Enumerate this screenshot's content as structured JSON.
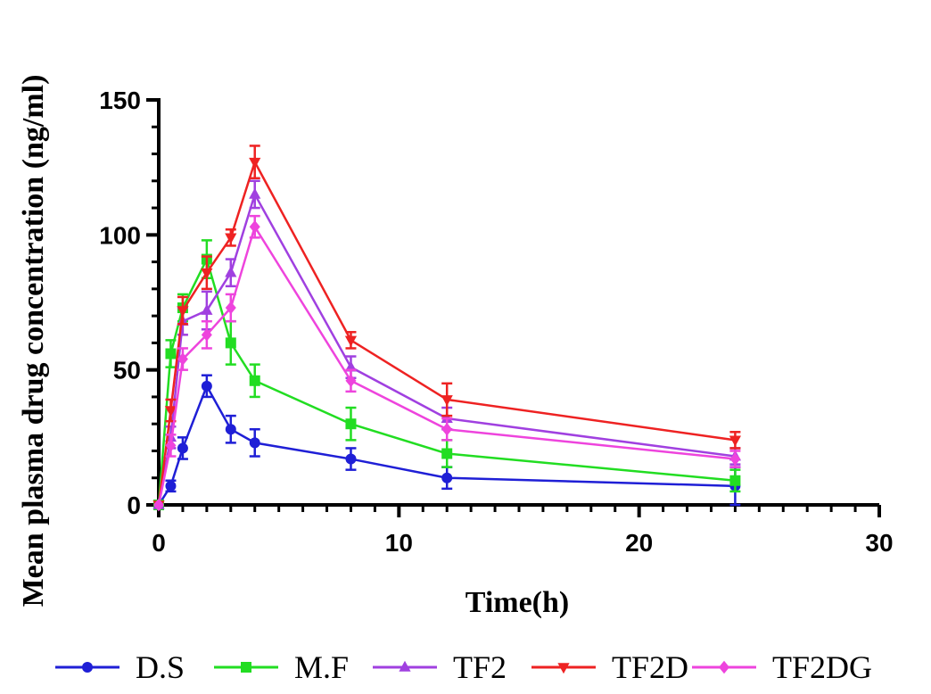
{
  "chart_data": {
    "type": "line",
    "title": "",
    "xlabel": "Time(h)",
    "ylabel": "Mean plasma drug concentration (ng/ml)",
    "xlim": [
      0,
      30
    ],
    "ylim": [
      0,
      150
    ],
    "xticks": [
      0,
      10,
      20,
      30
    ],
    "yticks": [
      0,
      50,
      100,
      150
    ],
    "grid": false,
    "legend_position": "bottom",
    "series": [
      {
        "name": "D.S",
        "color": "#1f1fd6",
        "marker": "circle",
        "x": [
          0,
          0.5,
          1,
          2,
          3,
          4,
          8,
          12,
          24
        ],
        "y": [
          0,
          7,
          21,
          44,
          28,
          23,
          17,
          10,
          7
        ],
        "err": [
          0,
          2,
          4,
          4,
          5,
          5,
          4,
          4,
          7
        ]
      },
      {
        "name": "M.F",
        "color": "#22dd22",
        "marker": "square",
        "x": [
          0,
          0.5,
          1,
          2,
          3,
          4,
          8,
          12,
          24
        ],
        "y": [
          0,
          56,
          73,
          91,
          60,
          46,
          30,
          19,
          9
        ],
        "err": [
          0,
          5,
          5,
          7,
          8,
          6,
          6,
          5,
          4
        ]
      },
      {
        "name": "TF2",
        "color": "#a040e0",
        "marker": "triangle-up",
        "x": [
          0,
          0.5,
          1,
          2,
          3,
          4,
          8,
          12,
          24
        ],
        "y": [
          0,
          25,
          68,
          72,
          86,
          115,
          51,
          32,
          18
        ],
        "err": [
          0,
          4,
          5,
          7,
          5,
          5,
          4,
          4,
          3
        ]
      },
      {
        "name": "TF2D",
        "color": "#ee2222",
        "marker": "triangle-down",
        "x": [
          0,
          0.5,
          1,
          2,
          3,
          4,
          8,
          12,
          24
        ],
        "y": [
          0,
          35,
          72,
          86,
          99,
          127,
          61,
          39,
          24
        ],
        "err": [
          0,
          4,
          5,
          6,
          3,
          6,
          3,
          6,
          3
        ]
      },
      {
        "name": "TF2DG",
        "color": "#ee44dd",
        "marker": "diamond",
        "x": [
          0,
          0.5,
          1,
          2,
          3,
          4,
          8,
          12,
          24
        ],
        "y": [
          0,
          22,
          54,
          63,
          73,
          103,
          46,
          28,
          17
        ],
        "err": [
          0,
          4,
          4,
          5,
          5,
          4,
          4,
          4,
          3
        ]
      }
    ]
  }
}
